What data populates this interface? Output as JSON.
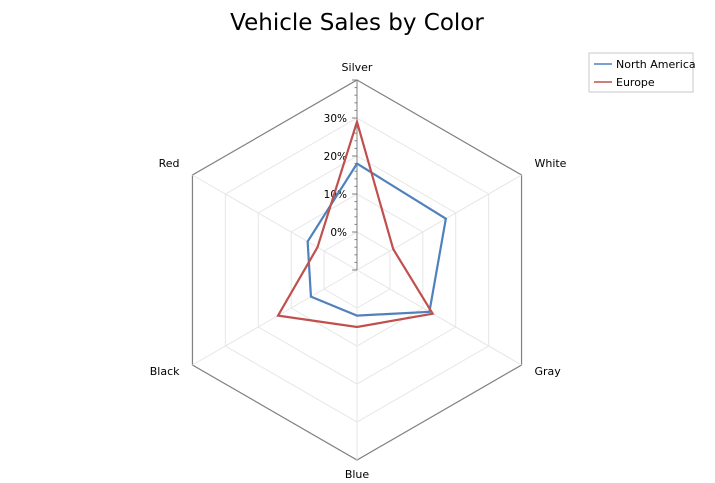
{
  "chart_data": {
    "type": "radar",
    "title": "Vehicle Sales by Color",
    "categories": [
      "Silver",
      "White",
      "Gray",
      "Blue",
      "Black",
      "Red"
    ],
    "tick_labels": [
      "0%",
      "10%",
      "20%",
      "30%"
    ],
    "ylim": [
      -0.1,
      0.4
    ],
    "ticks": [
      0,
      0.1,
      0.2,
      0.3
    ],
    "grid": true,
    "legend_position": "top-right",
    "series": [
      {
        "name": "North America",
        "color": "#4F81BD",
        "values": [
          0.18,
          0.17,
          0.12,
          0.02,
          0.04,
          0.05
        ]
      },
      {
        "name": "Europe",
        "color": "#C0504D",
        "values": [
          0.29,
          0.01,
          0.13,
          0.05,
          0.14,
          0.02
        ]
      }
    ]
  }
}
